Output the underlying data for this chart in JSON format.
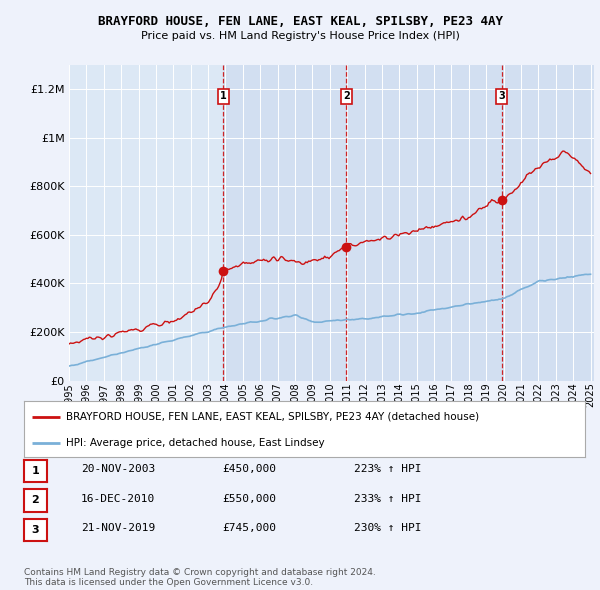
{
  "title": "BRAYFORD HOUSE, FEN LANE, EAST KEAL, SPILSBY, PE23 4AY",
  "subtitle": "Price paid vs. HM Land Registry's House Price Index (HPI)",
  "background_color": "#eef2fb",
  "plot_bg_color": "#dce8f5",
  "ylim": [
    0,
    1300000
  ],
  "yticks": [
    0,
    200000,
    400000,
    600000,
    800000,
    1000000,
    1200000
  ],
  "ytick_labels": [
    "£0",
    "£200K",
    "£400K",
    "£600K",
    "£800K",
    "£1M",
    "£1.2M"
  ],
  "hpi_color": "#7ab0d8",
  "price_color": "#cc1111",
  "vline_color": "#cc1111",
  "purchases": [
    {
      "date": 2003.88,
      "price": 450000,
      "label": "1"
    },
    {
      "date": 2010.96,
      "price": 550000,
      "label": "2"
    },
    {
      "date": 2019.88,
      "price": 745000,
      "label": "3"
    }
  ],
  "legend_label_red": "BRAYFORD HOUSE, FEN LANE, EAST KEAL, SPILSBY, PE23 4AY (detached house)",
  "legend_label_blue": "HPI: Average price, detached house, East Lindsey",
  "table_data": [
    {
      "num": "1",
      "date": "20-NOV-2003",
      "price": "£450,000",
      "pct": "223% ↑ HPI"
    },
    {
      "num": "2",
      "date": "16-DEC-2010",
      "price": "£550,000",
      "pct": "233% ↑ HPI"
    },
    {
      "num": "3",
      "date": "21-NOV-2019",
      "price": "£745,000",
      "pct": "230% ↑ HPI"
    }
  ],
  "footer": "Contains HM Land Registry data © Crown copyright and database right 2024.\nThis data is licensed under the Open Government Licence v3.0.",
  "xtick_years": [
    1995,
    1996,
    1997,
    1998,
    1999,
    2000,
    2001,
    2002,
    2003,
    2004,
    2005,
    2006,
    2007,
    2008,
    2009,
    2010,
    2011,
    2012,
    2013,
    2014,
    2015,
    2016,
    2017,
    2018,
    2019,
    2020,
    2021,
    2022,
    2023,
    2024,
    2025
  ]
}
